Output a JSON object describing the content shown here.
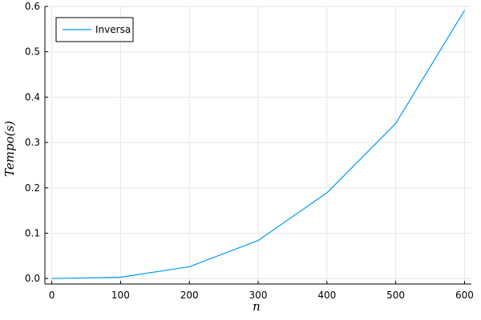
{
  "chart_data": {
    "type": "line",
    "title": "",
    "xlabel": "n",
    "ylabel": "Tempo(s)",
    "xlim": [
      -10,
      610
    ],
    "ylim": [
      -0.012,
      0.6
    ],
    "xticks": [
      0,
      100,
      200,
      300,
      400,
      500,
      600
    ],
    "yticks": [
      0.0,
      0.1,
      0.2,
      0.3,
      0.4,
      0.5,
      0.6
    ],
    "xtick_labels": [
      "0",
      "100",
      "200",
      "300",
      "400",
      "500",
      "600"
    ],
    "ytick_labels": [
      "0.0",
      "0.1",
      "0.2",
      "0.3",
      "0.4",
      "0.5",
      "0.6"
    ],
    "grid": true,
    "legend_position": "top-left",
    "series": [
      {
        "name": "Inversa",
        "color": "#009af9",
        "x": [
          0,
          100,
          200,
          300,
          400,
          500,
          600
        ],
        "y": [
          0.0,
          0.003,
          0.026,
          0.084,
          0.189,
          0.342,
          0.591
        ]
      }
    ]
  }
}
